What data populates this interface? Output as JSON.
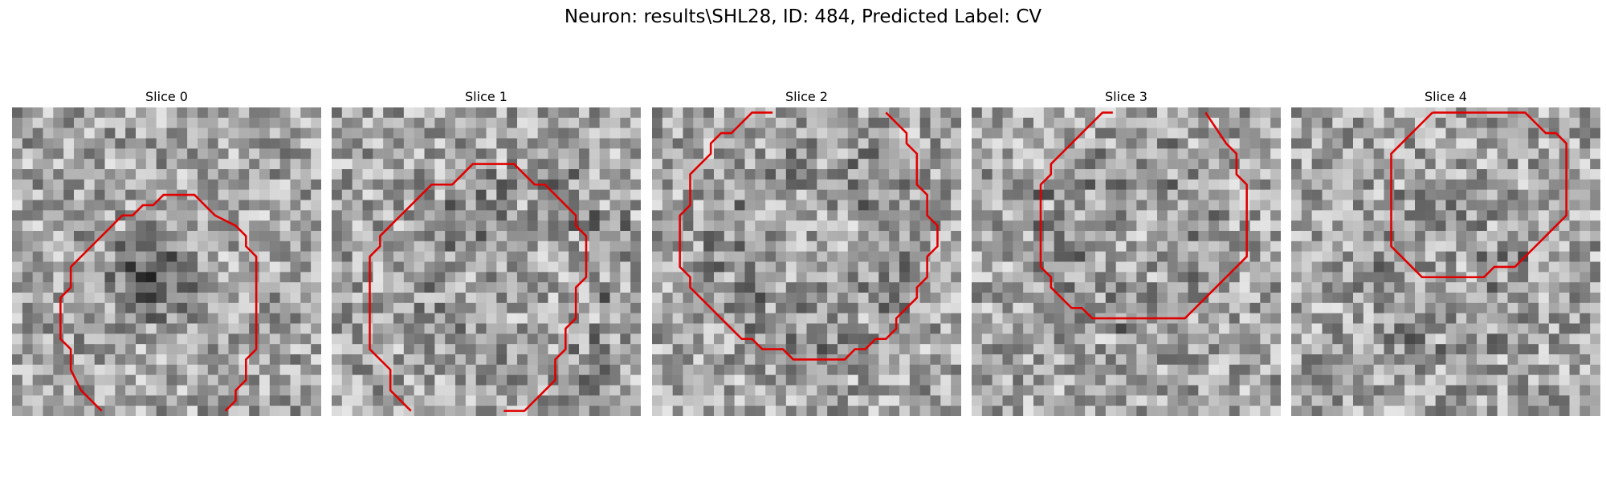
{
  "figure": {
    "title": "Neuron: results\\SHL28, ID: 484, Predicted Label: CV"
  },
  "panels": [
    {
      "title": "Slice 0",
      "contour_color": "#e00000",
      "icon": "grayscale-noise-image"
    },
    {
      "title": "Slice 1",
      "contour_color": "#e00000",
      "icon": "grayscale-noise-image"
    },
    {
      "title": "Slice 2",
      "contour_color": "#e00000",
      "icon": "grayscale-noise-image"
    },
    {
      "title": "Slice 3",
      "contour_color": "#e00000",
      "icon": "grayscale-noise-image"
    },
    {
      "title": "Slice 4",
      "contour_color": "#e00000",
      "icon": "grayscale-noise-image"
    }
  ]
}
